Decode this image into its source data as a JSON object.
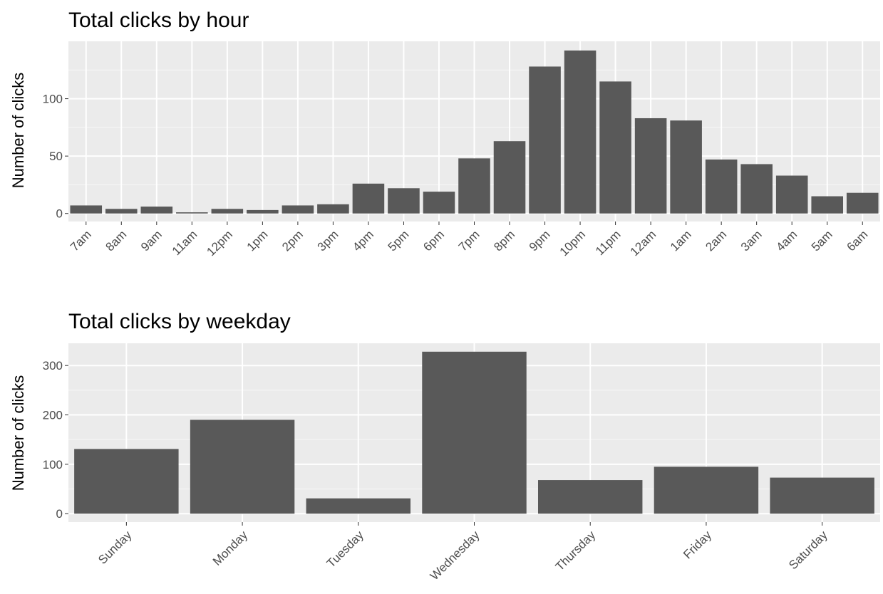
{
  "chart_data": [
    {
      "type": "bar",
      "title": "Total clicks by hour",
      "xlabel": "",
      "ylabel": "Number of clicks",
      "categories": [
        "7am",
        "8am",
        "9am",
        "11am",
        "12pm",
        "1pm",
        "2pm",
        "3pm",
        "4pm",
        "5pm",
        "6pm",
        "7pm",
        "8pm",
        "9pm",
        "10pm",
        "11pm",
        "12am",
        "1am",
        "2am",
        "3am",
        "4am",
        "5am",
        "6am"
      ],
      "values": [
        7,
        4,
        6,
        1,
        4,
        3,
        7,
        8,
        26,
        22,
        19,
        48,
        63,
        128,
        142,
        115,
        83,
        81,
        47,
        43,
        33,
        15,
        18
      ],
      "yticks": [
        0,
        50,
        100
      ],
      "ylim": [
        -7,
        150
      ],
      "grid": true,
      "bar_color": "#595959",
      "panel_color": "#ebebeb"
    },
    {
      "type": "bar",
      "title": "Total clicks by weekday",
      "xlabel": "",
      "ylabel": "Number of clicks",
      "categories": [
        "Sunday",
        "Monday",
        "Tuesday",
        "Wednesday",
        "Thursday",
        "Friday",
        "Saturday"
      ],
      "values": [
        131,
        190,
        31,
        328,
        68,
        95,
        73
      ],
      "yticks": [
        0,
        100,
        200,
        300
      ],
      "ylim": [
        -17,
        345
      ],
      "grid": true,
      "bar_color": "#595959",
      "panel_color": "#ebebeb"
    }
  ]
}
